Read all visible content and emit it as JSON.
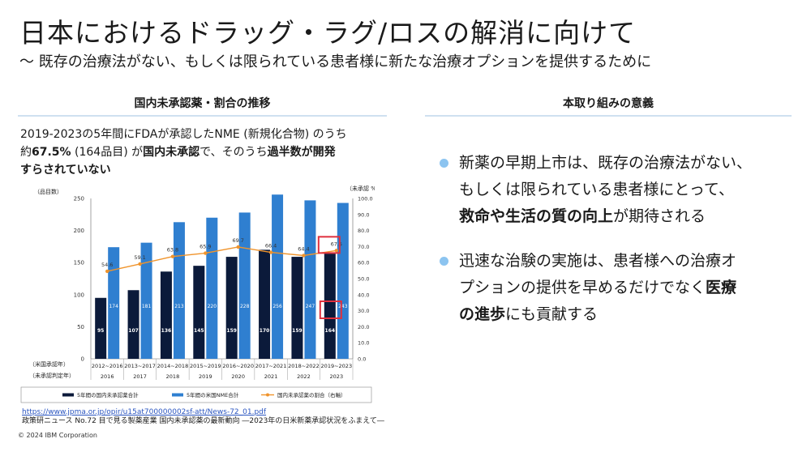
{
  "slide": {
    "title": "日本におけるドラッグ・ラグ/ロスの解消に向けて",
    "subtitle": "〜 既存の治療法がない、もしくは限られている患者様に新たな治療オプションを提供するために"
  },
  "left": {
    "heading": "国内未承認薬・割合の推移",
    "desc_l1_a": "2019-2023の5年間にFDAが承認したNME (新規化合物) のうち",
    "desc_l2_a": "約",
    "desc_l2_b": "67.5%",
    "desc_l2_c": " (164品目) が",
    "desc_l2_d": "国内未承認",
    "desc_l2_e": "で、そのうち",
    "desc_l2_f": "過半数が開発",
    "desc_l3": "すらされていない",
    "source_url": "https://www.jpma.or.jp/opir/u15at700000002sf-att/News-72_01.pdf",
    "source_note": "政策研ニュース No.72 目で見る製薬産業 国内未承認薬の最新動向 ―2023年の日米新薬承認状況をふまえて―"
  },
  "right": {
    "heading": "本取り組みの意義",
    "b1_a": "新薬の早期上市は、既存の治療法がない、",
    "b1_b": "もしくは限られている患者様にとって、",
    "b1_c": "救命や生活の質の向上",
    "b1_d": "が期待される",
    "b2_a": "迅速な治験の実施は、患者様への治療オ",
    "b2_b": "プションの提供を早めるだけでなく",
    "b2_c": "医療",
    "b2_d": "の進歩",
    "b2_e": "にも貢献する"
  },
  "copyright": "© 2024 IBM Corporation",
  "colors": {
    "dark_bar": "#0b1a3a",
    "blue_bar": "#2f7fd0",
    "line": "#f0942c",
    "highlight": "#e0303e",
    "bullet_dot": "#8cc4f0"
  },
  "chart_data": {
    "type": "bar",
    "left_axis_label": "（品目数）",
    "right_axis_label": "（未承認 %）",
    "ylim": [
      0,
      250
    ],
    "y2lim": [
      0,
      100
    ],
    "y_ticks": [
      "0",
      "50",
      "100",
      "150",
      "200",
      "250"
    ],
    "y2_ticks": [
      "0.0",
      "10.0",
      "20.0",
      "30.0",
      "40.0",
      "50.0",
      "60.0",
      "70.0",
      "80.0",
      "90.0",
      "100.0"
    ],
    "categories": [
      "2012~2016",
      "2013~2017",
      "2014~2018",
      "2015~2019",
      "2016~2020",
      "2017~2021",
      "2018~2022",
      "2019~2023"
    ],
    "years": [
      "2016",
      "2017",
      "2018",
      "2019",
      "2020",
      "2021",
      "2022",
      "2023"
    ],
    "row_label_1": "（米国承認年）",
    "row_label_2": "（未承認判定年）",
    "series": [
      {
        "name": "5年間の国内未承認薬合計",
        "values": [
          95,
          107,
          136,
          145,
          159,
          170,
          159,
          164
        ]
      },
      {
        "name": "5年間の米国NME合計",
        "values": [
          174,
          181,
          213,
          220,
          228,
          256,
          247,
          243
        ]
      },
      {
        "name": "国内未承認薬の割合（右軸）",
        "values": [
          54.6,
          59.1,
          63.8,
          65.9,
          69.7,
          66.4,
          64.4,
          67.5
        ]
      }
    ],
    "value_labels_pct": [
      "54.6",
      "59.1",
      "63.8",
      "65.9",
      "69.7",
      "66.4",
      "64.4",
      "67.5"
    ]
  }
}
